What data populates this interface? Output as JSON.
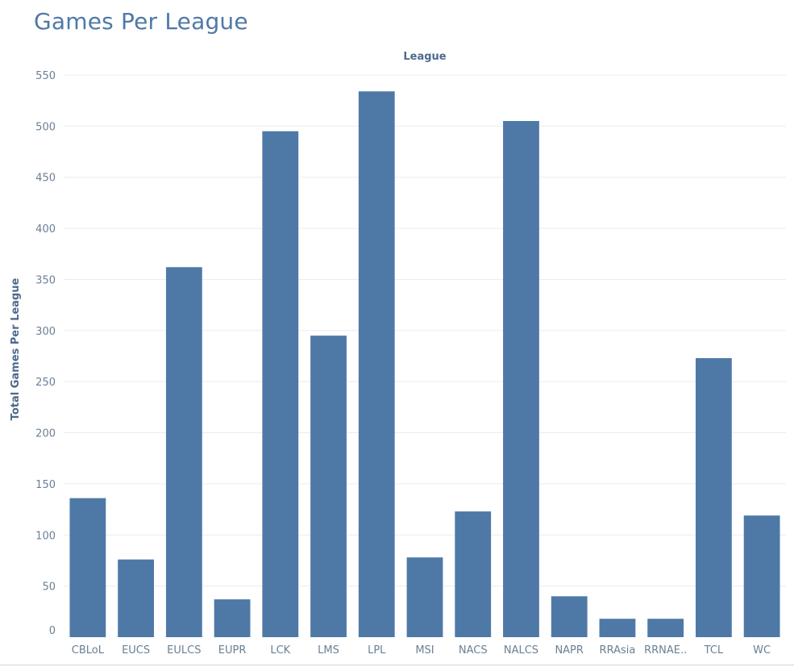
{
  "title": "Games Per League",
  "chart_data": {
    "type": "bar",
    "xlabel": "League",
    "ylabel": "Total Games Per League",
    "ylim": [
      0,
      550
    ],
    "yticks": [
      0,
      50,
      100,
      150,
      200,
      250,
      300,
      350,
      400,
      450,
      500,
      550
    ],
    "grid": true,
    "color": "#4e79a7",
    "categories": [
      "CBLoL",
      "EUCS",
      "EULCS",
      "EUPR",
      "LCK",
      "LMS",
      "LPL",
      "MSI",
      "NACS",
      "NALCS",
      "NAPR",
      "RRAsia",
      "RRNAE..",
      "TCL",
      "WC"
    ],
    "values": [
      136,
      76,
      362,
      37,
      495,
      295,
      534,
      78,
      123,
      505,
      40,
      18,
      18,
      273,
      119
    ]
  }
}
